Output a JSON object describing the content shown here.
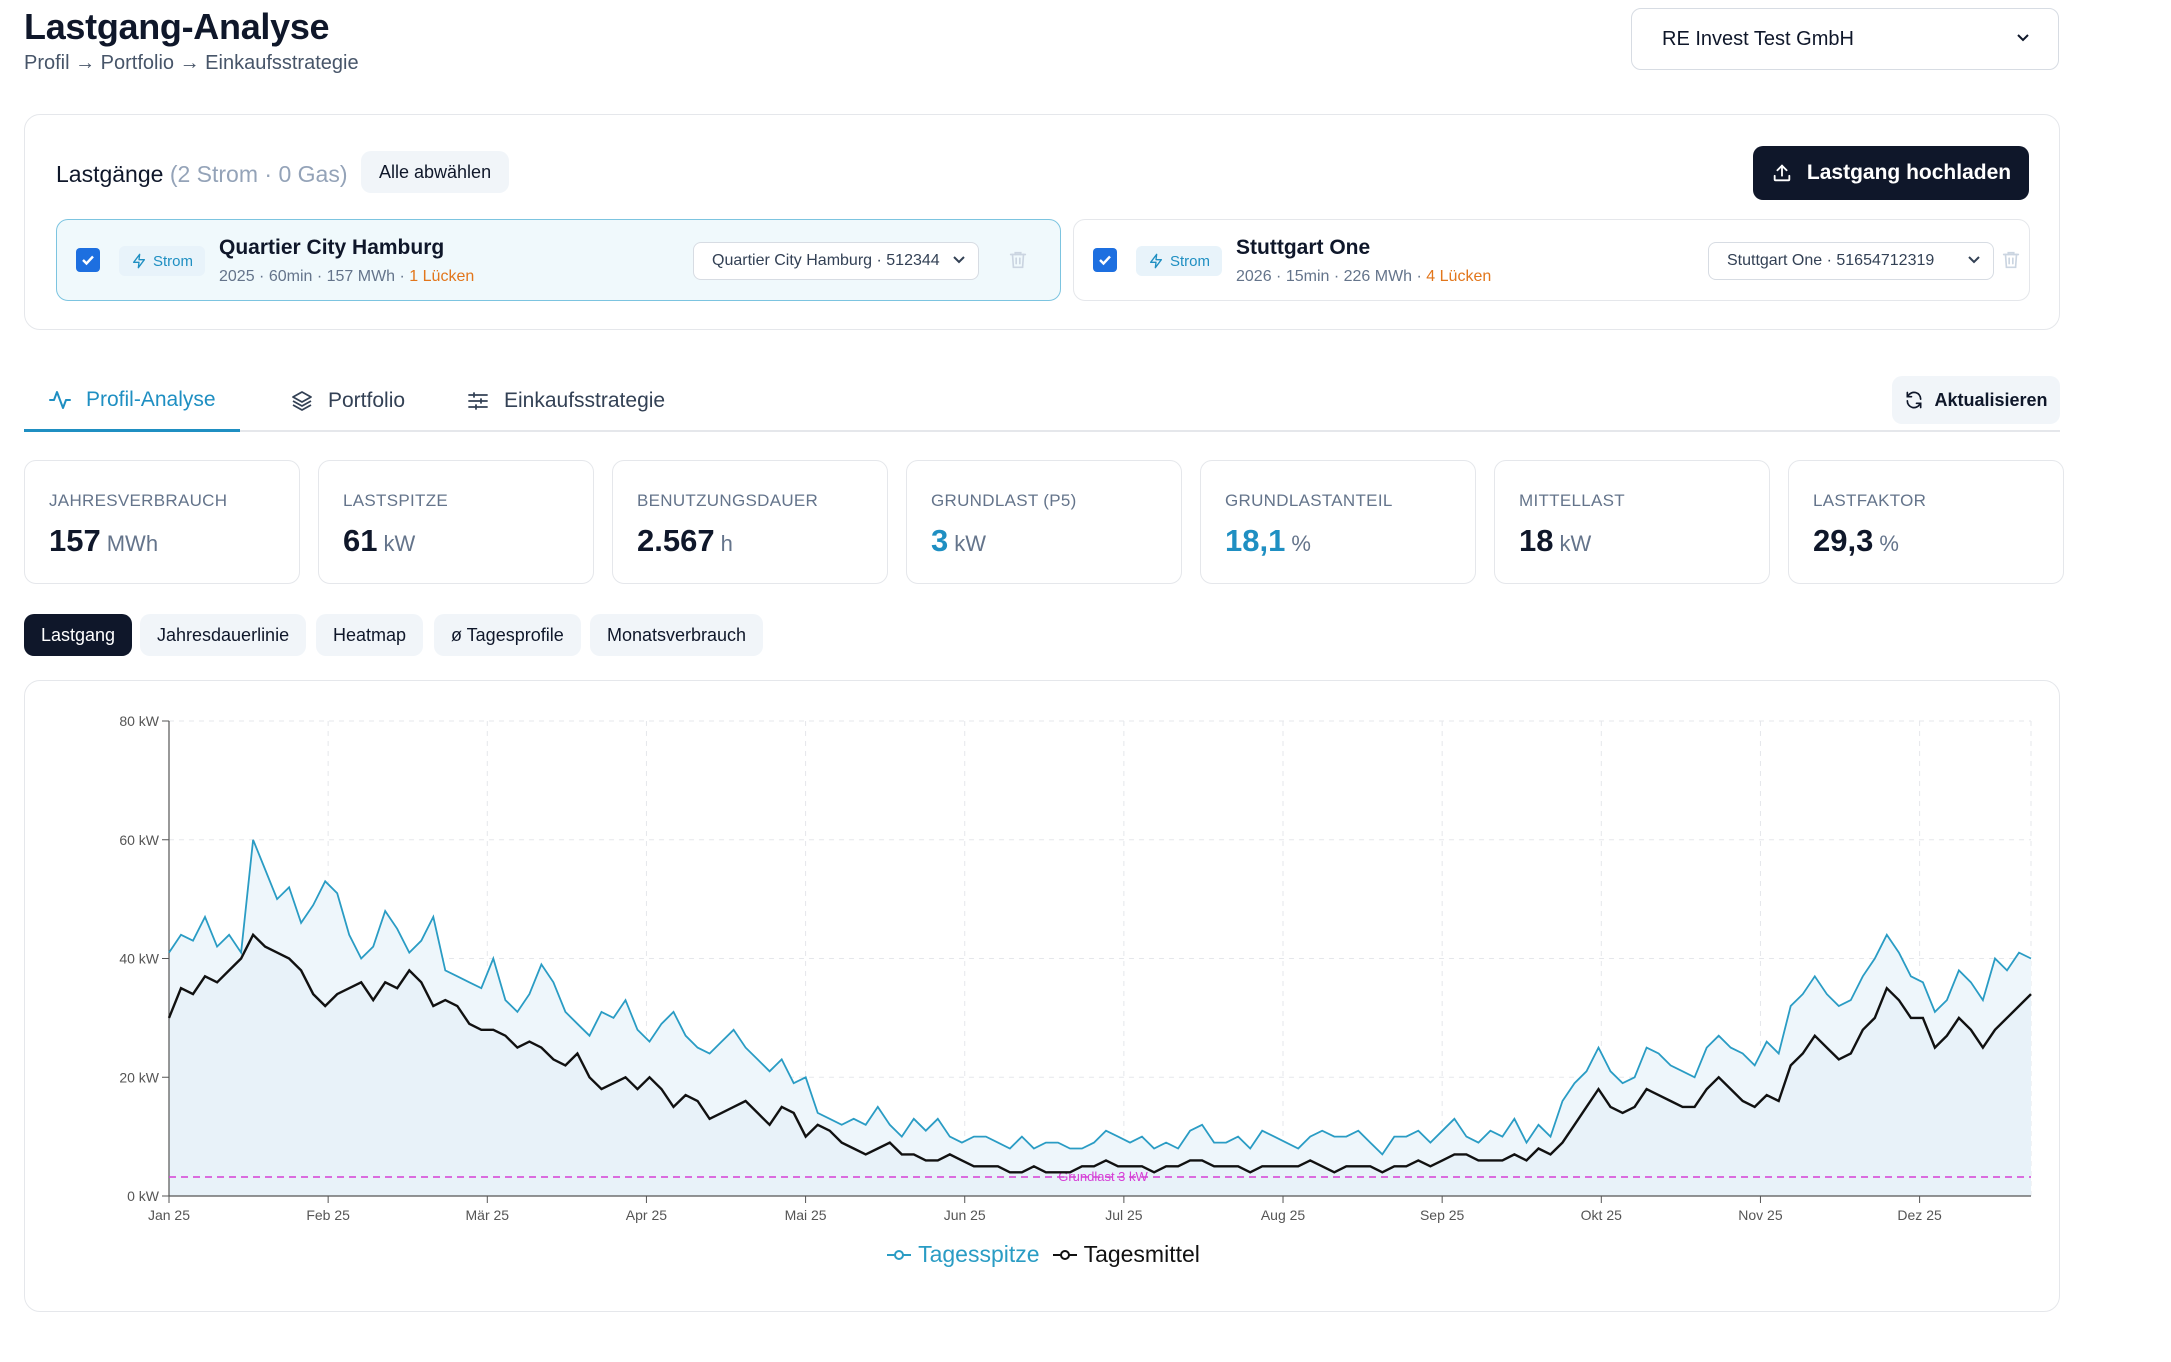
{
  "header": {
    "title": "Lastgang-Analyse",
    "breadcrumb": "Profil → Portfolio → Einkaufsstrategie",
    "company": "RE Invest Test GmbH"
  },
  "lastgaenge": {
    "title": "Lastgänge",
    "count": "(2 Strom · 0 Gas)",
    "deselect_label": "Alle abwählen",
    "upload_label": "Lastgang hochladen",
    "files": [
      {
        "type": "Strom",
        "name": "Quartier City Hamburg",
        "meta": "2025 · 60min · 157 MWh · ",
        "gaps": "1 Lücken",
        "meter": "Quartier City Hamburg · 512344",
        "checked": true
      },
      {
        "type": "Strom",
        "name": "Stuttgart One",
        "meta": "2026 · 15min · 226 MWh · ",
        "gaps": "4 Lücken",
        "meter": "Stuttgart One · 51654712319",
        "checked": true
      }
    ]
  },
  "tabs": [
    {
      "label": "Profil-Analyse",
      "icon": "activity-icon",
      "active": true
    },
    {
      "label": "Portfolio",
      "icon": "layers-icon",
      "active": false
    },
    {
      "label": "Einkaufsstrategie",
      "icon": "sliders-icon",
      "active": false
    }
  ],
  "refresh_label": "Aktualisieren",
  "kpis": [
    {
      "label": "JAHRESVERBRAUCH",
      "value": "157",
      "unit": "MWh",
      "highlight": false
    },
    {
      "label": "LASTSPITZE",
      "value": "61",
      "unit": "kW",
      "highlight": false
    },
    {
      "label": "BENUTZUNGSDAUER",
      "value": "2.567",
      "unit": "h",
      "highlight": false
    },
    {
      "label": "GRUNDLAST (P5)",
      "value": "3",
      "unit": "kW",
      "highlight": true
    },
    {
      "label": "GRUNDLASTANTEIL",
      "value": "18,1",
      "unit": "%",
      "highlight": true
    },
    {
      "label": "MITTELLAST",
      "value": "18",
      "unit": "kW",
      "highlight": false
    },
    {
      "label": "LASTFAKTOR",
      "value": "29,3",
      "unit": "%",
      "highlight": false
    }
  ],
  "views": [
    {
      "label": "Lastgang",
      "active": true
    },
    {
      "label": "Jahresdauerlinie",
      "active": false
    },
    {
      "label": "Heatmap",
      "active": false
    },
    {
      "label": "ø Tagesprofile",
      "active": false
    },
    {
      "label": "Monatsverbrauch",
      "active": false
    }
  ],
  "colors": {
    "accent": "#1f8fc2",
    "dark": "#0f172a",
    "peak_line": "#2a9cc4",
    "mean_line": "#111111",
    "baseline": "#d63fd6",
    "area_fill": "#eef6fb",
    "warning": "#e2761b"
  },
  "chart_data": {
    "type": "line",
    "y_ticks": [
      "0 kW",
      "20 kW",
      "40 kW",
      "60 kW",
      "80 kW"
    ],
    "ylim": [
      0,
      80
    ],
    "x_ticks": [
      "Jan 25",
      "Feb 25",
      "Mär 25",
      "Apr 25",
      "Mai 25",
      "Jun 25",
      "Jul 25",
      "Aug 25",
      "Sep 25",
      "Okt 25",
      "Nov 25",
      "Dez 25"
    ],
    "grid": true,
    "baseline": {
      "label": "Grundlast 3 kW",
      "value": 3.2
    },
    "legend_position": "bottom",
    "series": [
      {
        "name": "Tagesspitze",
        "values": [
          41,
          44,
          43,
          47,
          42,
          44,
          41,
          60,
          55,
          50,
          52,
          46,
          49,
          53,
          51,
          44,
          40,
          42,
          48,
          45,
          41,
          43,
          47,
          38,
          37,
          36,
          35,
          40,
          33,
          31,
          34,
          39,
          36,
          31,
          29,
          27,
          31,
          30,
          33,
          28,
          26,
          29,
          31,
          27,
          25,
          24,
          26,
          28,
          25,
          23,
          21,
          23,
          19,
          20,
          14,
          13,
          12,
          13,
          12,
          15,
          12,
          10,
          13,
          11,
          13,
          10,
          9,
          10,
          10,
          9,
          8,
          10,
          8,
          9,
          9,
          8,
          8,
          9,
          11,
          10,
          9,
          10,
          8,
          9,
          8,
          11,
          12,
          9,
          9,
          10,
          8,
          11,
          10,
          9,
          8,
          10,
          11,
          10,
          10,
          11,
          9,
          7,
          10,
          10,
          11,
          9,
          11,
          13,
          10,
          9,
          11,
          10,
          13,
          9,
          12,
          10,
          16,
          19,
          21,
          25,
          21,
          19,
          20,
          25,
          24,
          22,
          21,
          20,
          25,
          27,
          25,
          24,
          22,
          26,
          24,
          32,
          34,
          37,
          34,
          32,
          33,
          37,
          40,
          44,
          41,
          37,
          36,
          31,
          33,
          38,
          36,
          33,
          40,
          38,
          41,
          40
        ]
      },
      {
        "name": "Tagesmittel",
        "values": [
          30,
          35,
          34,
          37,
          36,
          38,
          40,
          44,
          42,
          41,
          40,
          38,
          34,
          32,
          34,
          35,
          36,
          33,
          36,
          35,
          38,
          36,
          32,
          33,
          32,
          29,
          28,
          28,
          27,
          25,
          26,
          25,
          23,
          22,
          24,
          20,
          18,
          19,
          20,
          18,
          20,
          18,
          15,
          17,
          16,
          13,
          14,
          15,
          16,
          14,
          12,
          15,
          14,
          10,
          12,
          11,
          9,
          8,
          7,
          8,
          9,
          7,
          7,
          6,
          6,
          7,
          6,
          5,
          5,
          5,
          4,
          4,
          5,
          4,
          4,
          4,
          5,
          5,
          6,
          5,
          5,
          5,
          4,
          5,
          5,
          6,
          6,
          5,
          5,
          5,
          4,
          5,
          5,
          5,
          5,
          6,
          5,
          4,
          5,
          5,
          5,
          4,
          5,
          5,
          6,
          5,
          6,
          7,
          7,
          6,
          6,
          6,
          7,
          6,
          8,
          7,
          9,
          12,
          15,
          18,
          15,
          14,
          15,
          18,
          17,
          16,
          15,
          15,
          18,
          20,
          18,
          16,
          15,
          17,
          16,
          22,
          24,
          27,
          25,
          23,
          24,
          28,
          30,
          35,
          33,
          30,
          30,
          25,
          27,
          30,
          28,
          25,
          28,
          30,
          32,
          34
        ]
      }
    ]
  }
}
